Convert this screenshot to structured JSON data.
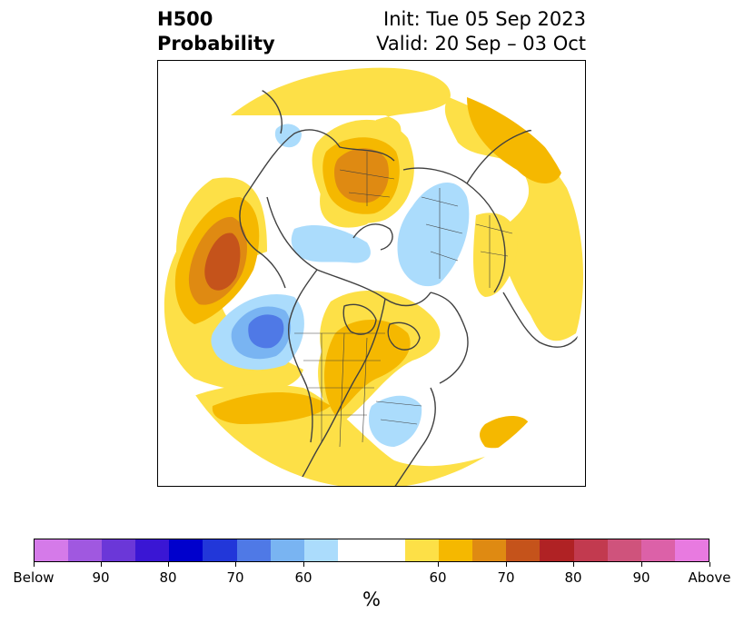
{
  "title": {
    "left_line1": "H500",
    "left_line2": "Probability",
    "right_line1": "Init: Tue 05 Sep 2023",
    "right_line2": "Valid: 20 Sep – 03 Oct"
  },
  "map": {
    "projection": "north-polar-stereographic",
    "fill_colors": {
      "above_50": "#fde047",
      "above_60": "#f5b800",
      "above_70": "#df8a12",
      "above_75": "#c5531b",
      "below_50": "#abdcfc",
      "below_60": "#79b4f2",
      "below_70": "#4f79e6"
    }
  },
  "colorbar": {
    "unit": "%",
    "colors": [
      "#d57ae9",
      "#a058e0",
      "#6b37d8",
      "#3a16d4",
      "#0000cc",
      "#2237d9",
      "#4f79e6",
      "#79b4f2",
      "#abdcfc",
      "#ffffff",
      "#fde047",
      "#f5b800",
      "#df8a12",
      "#c5531b",
      "#b02224",
      "#c23a4f",
      "#cf537c",
      "#dc61a8",
      "#e87ae0"
    ],
    "labels": [
      "Below",
      "90",
      "80",
      "70",
      "60",
      "60",
      "70",
      "80",
      "90",
      "Above"
    ]
  }
}
